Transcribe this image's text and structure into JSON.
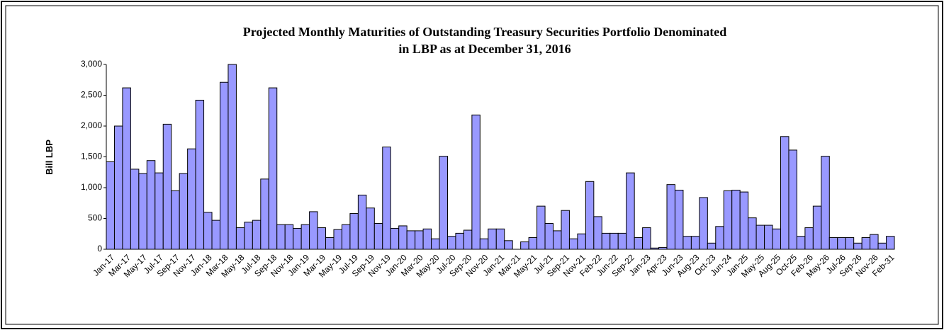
{
  "chart_data": {
    "type": "bar",
    "title": "Projected Monthly Maturities of Outstanding Treasury Securities Portfolio Denominated",
    "subtitle": "in LBP as at December 31, 2016",
    "y_label": "Bill LBP",
    "color": "#9999ff",
    "ylim": [
      0,
      3000
    ],
    "yticks": [
      0,
      500,
      {
        "value": 1000,
        "label": "1,000"
      },
      {
        "value": 1500,
        "label": "1,500"
      },
      {
        "value": 2000,
        "label": "2,000"
      },
      {
        "value": 2500,
        "label": "2,500"
      },
      {
        "value": 3000,
        "label": "3,000"
      }
    ],
    "categories": [
      "Jan-17",
      null,
      "Mar-17",
      null,
      "May-17",
      null,
      "Jul-17",
      null,
      "Sep-17",
      null,
      "Nov-17",
      null,
      "Jan-18",
      null,
      "Mar-18",
      null,
      "May-18",
      null,
      "Jul-18",
      null,
      "Sep-18",
      null,
      "Nov-18",
      null,
      "Jan-19",
      null,
      "Mar-19",
      null,
      "May-19",
      null,
      "Jul-19",
      null,
      "Sep-19",
      null,
      "Nov-19",
      null,
      "Jan-20",
      null,
      "Mar-20",
      null,
      "May-20",
      null,
      "Jul-20",
      null,
      "Sep-20",
      null,
      "Nov-20",
      null,
      "Jan-21",
      null,
      "Mar-21",
      null,
      "May-21",
      null,
      "Jul-21",
      null,
      "Sep-21",
      null,
      "Nov-21",
      null,
      "Feb-22",
      null,
      "Jun-22",
      null,
      "Sep-22",
      null,
      "Jan-23",
      null,
      "Apr-23",
      null,
      "Jun-23",
      null,
      "Aug-23",
      null,
      "Oct-23",
      null,
      "Jun-24",
      null,
      "Jan-25",
      null,
      "May-25",
      null,
      "Aug-25",
      null,
      "Oct-25",
      null,
      "Feb-26",
      null,
      "May-26",
      null,
      "Jul-26",
      null,
      "Sep-26",
      null,
      "Nov-26",
      null,
      "Feb-31"
    ],
    "values": [
      1420,
      2000,
      2620,
      1300,
      1230,
      1440,
      1240,
      2030,
      950,
      1230,
      1630,
      2420,
      600,
      470,
      2710,
      3000,
      350,
      440,
      470,
      1140,
      2620,
      400,
      400,
      340,
      400,
      610,
      350,
      190,
      320,
      400,
      580,
      880,
      670,
      420,
      1660,
      340,
      380,
      300,
      300,
      330,
      170,
      1510,
      210,
      260,
      310,
      2180,
      170,
      330,
      330,
      140,
      0,
      120,
      190,
      700,
      420,
      300,
      630,
      170,
      250,
      1100,
      530,
      260,
      260,
      260,
      1240,
      190,
      350,
      20,
      30,
      1050,
      960,
      210,
      210,
      840,
      100,
      370,
      950,
      960,
      930,
      510,
      390,
      390,
      330,
      1830,
      1610,
      210,
      350,
      700,
      1510,
      190,
      190,
      190,
      100,
      190,
      240,
      100,
      210
    ]
  }
}
